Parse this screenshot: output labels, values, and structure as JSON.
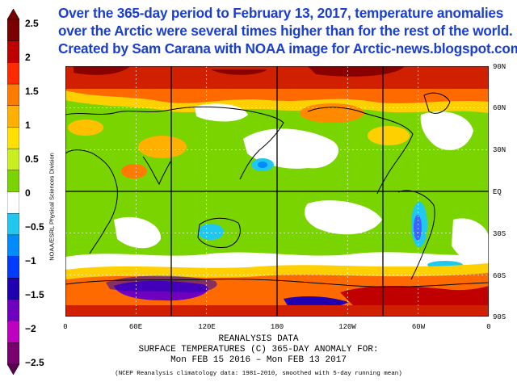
{
  "caption": {
    "line1": "Over the 365-day period to February 13, 2017, temperature anomalies",
    "line2": "over the Arctic were several times higher than for the rest of the world.",
    "line3": "Created by Sam Carana with NOAA image for Arctic-news.blogspot.com"
  },
  "legend": {
    "labels": [
      "2.5",
      "2",
      "1.5",
      "1",
      "0.5",
      "0",
      "−0.5",
      "−1",
      "−1.5",
      "−2",
      "−2.5"
    ],
    "colors": [
      "#7a0000",
      "#c00000",
      "#ff2a00",
      "#ff7a00",
      "#ffb000",
      "#ffe000",
      "#c8f020",
      "#7ad400",
      "#ffffff",
      "#20c8f0",
      "#008cff",
      "#003cff",
      "#2000b0",
      "#7000c0",
      "#c000c0",
      "#7a0070"
    ]
  },
  "credit": "NOAA/ESRL Physical Sciences Division",
  "map": {
    "lat_labels": [
      "90N",
      "60N",
      "30N",
      "EQ",
      "30S",
      "60S",
      "90S"
    ],
    "lon_labels": [
      "0",
      "60E",
      "120E",
      "180",
      "120W",
      "60W",
      "0"
    ]
  },
  "footer": {
    "line1": "REANALYSIS DATA",
    "line2": "SURFACE TEMPERATURES (C)   365-DAY ANOMALY FOR:",
    "line3": "Mon FEB 15 2016 – Mon FEB 13 2017",
    "note": "(NCEP Reanalysis climatology data: 1981–2010, smoothed with 5-day running mean)"
  }
}
